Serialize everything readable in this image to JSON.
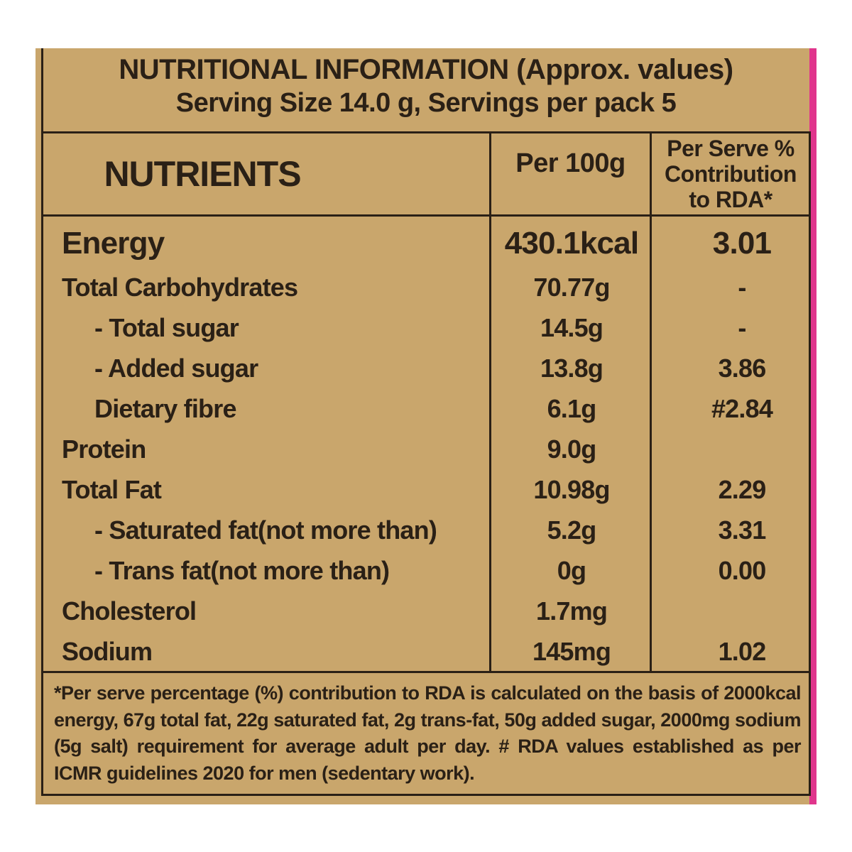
{
  "header": {
    "title": "NUTRITIONAL INFORMATION (Approx. values)",
    "subtitle": "Serving Size 14.0 g, Servings per pack 5"
  },
  "table": {
    "columns": [
      "NUTRIENTS",
      "Per 100g",
      "Per Serve % Contribution to RDA*"
    ],
    "rows": [
      {
        "nutrient": "Energy",
        "per_100g": "430.1kcal",
        "rda": "3.01"
      },
      {
        "nutrient": "Total Carbohydrates",
        "per_100g": "70.77g",
        "rda": "-"
      },
      {
        "nutrient": "- Total sugar",
        "per_100g": "14.5g",
        "rda": "-"
      },
      {
        "nutrient": "- Added sugar",
        "per_100g": "13.8g",
        "rda": "3.86"
      },
      {
        "nutrient": "Dietary fibre",
        "per_100g": "6.1g",
        "rda": "#2.84"
      },
      {
        "nutrient": "Protein",
        "per_100g": "9.0g"
      },
      {
        "nutrient": "Total Fat",
        "per_100g": "10.98g",
        "rda": "2.29"
      },
      {
        "nutrient": "- Saturated fat(not more than)",
        "per_100g": "5.2g",
        "rda": "3.31"
      },
      {
        "nutrient": "- Trans fat(not more than)",
        "per_100g": "0g",
        "rda": "0.00"
      },
      {
        "nutrient": "Cholesterol",
        "per_100g": "1.7mg"
      },
      {
        "nutrient": "Sodium",
        "per_100g": "145mg",
        "rda": "1.02"
      }
    ]
  },
  "footnote": "*Per serve percentage (%) contribution to RDA is calculated on the basis of 2000kcal energy, 67g total fat, 22g saturated fat, 2g trans-fat, 50g added sugar, 2000mg sodium (5g salt) requirement for average adult per day. # RDA values established as per ICMR guidelines 2020 for men (sedentary work)."
}
